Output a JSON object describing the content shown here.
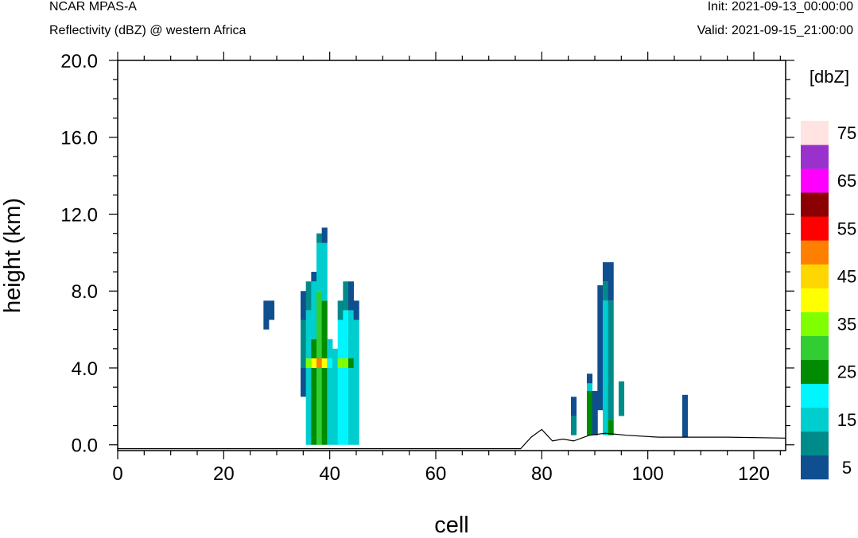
{
  "header": {
    "model": "NCAR MPAS-A",
    "field": "Reflectivity (dBZ) @ western Africa",
    "init": "Init: 2021-09-13_00:00:00",
    "valid": "Valid: 2021-09-15_21:00:00"
  },
  "chart_data": {
    "type": "heatmap",
    "xlabel": "cell",
    "ylabel": "height (km)",
    "xlim": [
      0,
      126
    ],
    "ylim": [
      -0.3,
      20.0
    ],
    "x_ticks": [
      "0",
      "20",
      "40",
      "60",
      "80",
      "100",
      "120"
    ],
    "y_ticks": [
      "0.0",
      "4.0",
      "8.0",
      "12.0",
      "16.0",
      "20.0"
    ],
    "colorbar": {
      "unit": "[dbZ]",
      "labels": [
        "5",
        "15",
        "25",
        "35",
        "45",
        "55",
        "65",
        "75"
      ],
      "levels": [
        5,
        10,
        15,
        20,
        25,
        30,
        35,
        40,
        45,
        50,
        55,
        60,
        65,
        70,
        75
      ],
      "colors": [
        "#0f4f8f",
        "#008b8b",
        "#00cdcd",
        "#00f5ff",
        "#008b00",
        "#32cd32",
        "#7fff00",
        "#ffff00",
        "#ffd700",
        "#ff7f00",
        "#ff0000",
        "#8b0000",
        "#ff00ff",
        "#9932cc",
        "#ffe4e1"
      ]
    },
    "cell_height_km": 0.5,
    "columns": [
      {
        "x": 28,
        "segments": [
          {
            "from": 6.0,
            "to": 7.5,
            "dbz": 5
          }
        ]
      },
      {
        "x": 29,
        "segments": [
          {
            "from": 6.5,
            "to": 7.5,
            "dbz": 5
          }
        ]
      },
      {
        "x": 35,
        "segments": [
          {
            "from": 2.5,
            "to": 8.0,
            "dbz": 5
          },
          {
            "from": 4.0,
            "to": 6.5,
            "dbz": 10
          }
        ]
      },
      {
        "x": 36,
        "segments": [
          {
            "from": 0.0,
            "to": 7.0,
            "dbz": 15
          },
          {
            "from": 4.0,
            "to": 4.5,
            "dbz": 35
          },
          {
            "from": 7.0,
            "to": 8.5,
            "dbz": 10
          }
        ]
      },
      {
        "x": 37,
        "segments": [
          {
            "from": 0.0,
            "to": 5.5,
            "dbz": 25
          },
          {
            "from": 4.0,
            "to": 4.5,
            "dbz": 40
          },
          {
            "from": 5.5,
            "to": 8.5,
            "dbz": 15
          },
          {
            "from": 8.5,
            "to": 9.0,
            "dbz": 5
          }
        ]
      },
      {
        "x": 38,
        "segments": [
          {
            "from": 0.0,
            "to": 8.0,
            "dbz": 30
          },
          {
            "from": 4.0,
            "to": 4.5,
            "dbz": 50
          },
          {
            "from": 8.0,
            "to": 10.5,
            "dbz": 15
          },
          {
            "from": 10.5,
            "to": 11.0,
            "dbz": 10
          }
        ]
      },
      {
        "x": 39,
        "segments": [
          {
            "from": 0.0,
            "to": 7.5,
            "dbz": 25
          },
          {
            "from": 4.0,
            "to": 4.5,
            "dbz": 40
          },
          {
            "from": 7.5,
            "to": 10.5,
            "dbz": 15
          },
          {
            "from": 10.5,
            "to": 11.3,
            "dbz": 5
          }
        ]
      },
      {
        "x": 40,
        "segments": [
          {
            "from": 0.0,
            "to": 4.0,
            "dbz": 15
          },
          {
            "from": 4.0,
            "to": 4.5,
            "dbz": 20
          },
          {
            "from": 4.5,
            "to": 5.5,
            "dbz": 15
          }
        ]
      },
      {
        "x": 41,
        "segments": [
          {
            "from": 0.0,
            "to": 4.0,
            "dbz": 15
          },
          {
            "from": 4.0,
            "to": 5.0,
            "dbz": 15
          }
        ]
      },
      {
        "x": 42,
        "segments": [
          {
            "from": 0.0,
            "to": 6.5,
            "dbz": 20
          },
          {
            "from": 4.0,
            "to": 4.5,
            "dbz": 35
          },
          {
            "from": 6.5,
            "to": 7.5,
            "dbz": 10
          }
        ]
      },
      {
        "x": 43,
        "segments": [
          {
            "from": 0.0,
            "to": 7.0,
            "dbz": 20
          },
          {
            "from": 4.0,
            "to": 4.5,
            "dbz": 35
          },
          {
            "from": 7.0,
            "to": 8.5,
            "dbz": 10
          }
        ]
      },
      {
        "x": 44,
        "segments": [
          {
            "from": 0.0,
            "to": 7.0,
            "dbz": 15
          },
          {
            "from": 4.0,
            "to": 4.5,
            "dbz": 25
          },
          {
            "from": 7.0,
            "to": 8.5,
            "dbz": 5
          }
        ]
      },
      {
        "x": 45,
        "segments": [
          {
            "from": 0.0,
            "to": 6.5,
            "dbz": 15
          },
          {
            "from": 6.5,
            "to": 7.5,
            "dbz": 5
          }
        ]
      },
      {
        "x": 86,
        "segments": [
          {
            "from": 0.5,
            "to": 1.5,
            "dbz": 10
          },
          {
            "from": 1.5,
            "to": 2.5,
            "dbz": 5
          }
        ]
      },
      {
        "x": 89,
        "segments": [
          {
            "from": 0.5,
            "to": 2.8,
            "dbz": 25
          },
          {
            "from": 2.8,
            "to": 3.2,
            "dbz": 15
          },
          {
            "from": 3.2,
            "to": 3.7,
            "dbz": 5
          }
        ]
      },
      {
        "x": 90,
        "segments": [
          {
            "from": 0.5,
            "to": 2.8,
            "dbz": 5
          }
        ]
      },
      {
        "x": 91,
        "segments": [
          {
            "from": 1.8,
            "to": 8.3,
            "dbz": 5
          }
        ]
      },
      {
        "x": 92,
        "segments": [
          {
            "from": 0.5,
            "to": 7.5,
            "dbz": 15
          },
          {
            "from": 7.5,
            "to": 8.5,
            "dbz": 10
          },
          {
            "from": 8.5,
            "to": 9.5,
            "dbz": 5
          }
        ]
      },
      {
        "x": 93,
        "segments": [
          {
            "from": 0.5,
            "to": 1.3,
            "dbz": 25
          },
          {
            "from": 1.3,
            "to": 7.5,
            "dbz": 10
          },
          {
            "from": 7.5,
            "to": 9.5,
            "dbz": 5
          }
        ]
      },
      {
        "x": 95,
        "segments": [
          {
            "from": 1.5,
            "to": 3.3,
            "dbz": 10
          }
        ]
      },
      {
        "x": 107,
        "segments": [
          {
            "from": 0.4,
            "to": 2.6,
            "dbz": 5
          }
        ]
      }
    ],
    "terrain": [
      [
        0,
        -0.2
      ],
      [
        76,
        -0.2
      ],
      [
        78,
        0.4
      ],
      [
        80,
        0.8
      ],
      [
        81,
        0.5
      ],
      [
        82,
        0.2
      ],
      [
        84,
        0.3
      ],
      [
        86,
        0.2
      ],
      [
        89,
        0.5
      ],
      [
        92,
        0.6
      ],
      [
        96,
        0.5
      ],
      [
        102,
        0.4
      ],
      [
        108,
        0.4
      ],
      [
        115,
        0.4
      ],
      [
        126,
        0.35
      ]
    ]
  }
}
